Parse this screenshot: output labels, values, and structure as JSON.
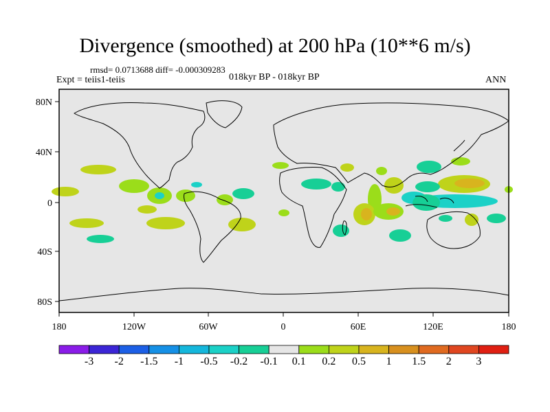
{
  "title": "Divergence (smoothed) at 200 hPa (10**6 m/s)",
  "stats": "rmsd= 0.0713688 diff= -0.000309283",
  "experiment": "Expt = teiis1-teiis",
  "period": "018kyr BP - 018kyr BP",
  "season": "ANN",
  "lat_ticks": [
    "80N",
    "40N",
    "0",
    "40S",
    "80S"
  ],
  "lon_ticks": [
    "180",
    "120W",
    "60W",
    "0",
    "60E",
    "120E",
    "180"
  ],
  "colorbar": {
    "colors": [
      "#8a1ce8",
      "#3b25d6",
      "#1c5fe6",
      "#1590e6",
      "#14b7dc",
      "#1bd1c7",
      "#17cf96",
      "#e6e6e6",
      "#9bdd1a",
      "#bfd31a",
      "#d8b41e",
      "#d8901e",
      "#e06a20",
      "#e04620",
      "#e01f12"
    ],
    "labels": [
      "-3",
      "-2",
      "-1.5",
      "-1",
      "-0.5",
      "-0.2",
      "-0.1",
      "0.1",
      "0.2",
      "0.5",
      "1",
      "1.5",
      "2",
      "3"
    ]
  },
  "colors": {
    "map_background": "#e6e6e6",
    "positive_small": "#bfd31a",
    "positive_mid": "#d8b41e",
    "negative_small": "#1bd1c7",
    "negative_mid": "#17cf96",
    "coastline": "#000000"
  }
}
